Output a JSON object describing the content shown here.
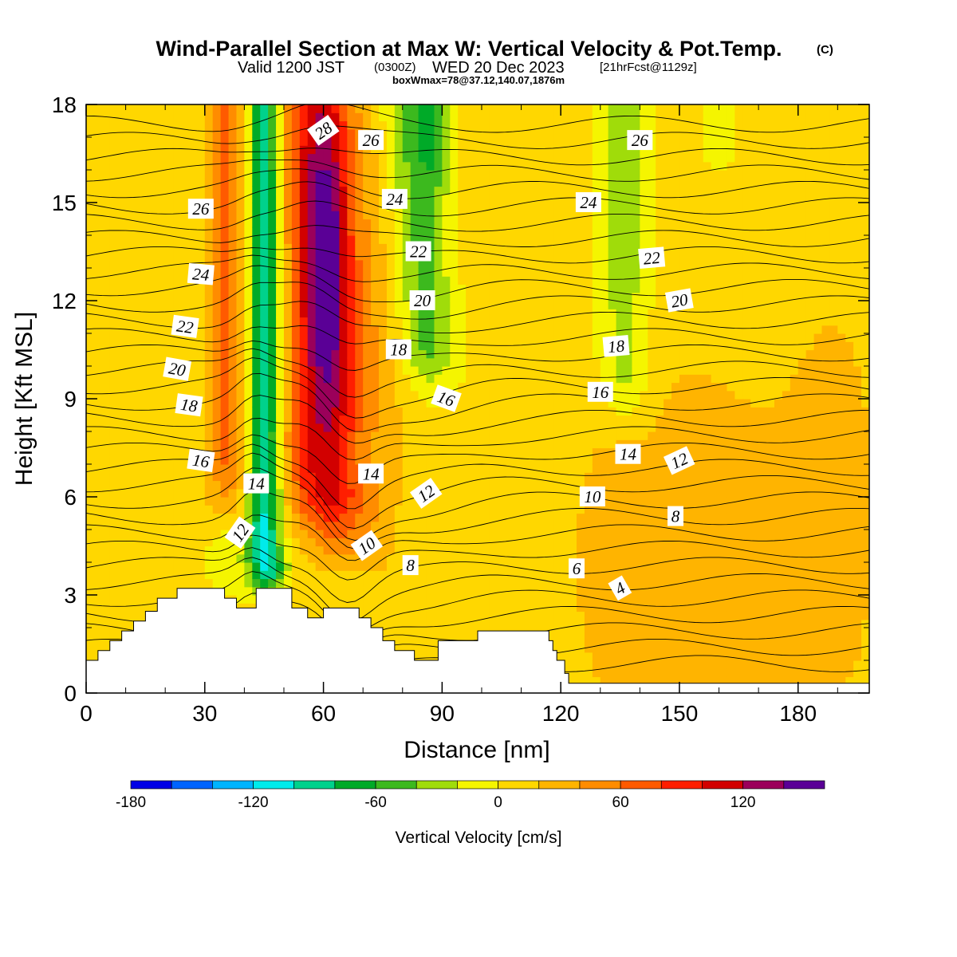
{
  "chart_data": {
    "type": "heatmap",
    "title": "Wind-Parallel Section at Max W: Vertical Velocity & Pot.Temp.",
    "title_mark": "(C)",
    "subtitle": {
      "valid": "Valid 1200 JST",
      "zulu": "(0300Z)",
      "date": "WED 20 Dec 2023",
      "fcst": "[21hrFcst@1129z]"
    },
    "box_info": "boxWmax=78@37.12,140.07,1876m",
    "xlabel": "Distance [nm]",
    "ylabel": "Height [Kft MSL]",
    "xlim": [
      0,
      198
    ],
    "ylim": [
      0,
      18
    ],
    "x_ticks": [
      0,
      30,
      60,
      90,
      120,
      150,
      180
    ],
    "y_ticks": [
      0,
      3,
      6,
      9,
      12,
      15,
      18
    ],
    "colorbar": {
      "label": "Vertical Velocity [cm/s]",
      "levels": [
        -180,
        -160,
        -140,
        -120,
        -100,
        -80,
        -60,
        -40,
        -20,
        0,
        20,
        40,
        60,
        80,
        100,
        120,
        140,
        160
      ],
      "tick_labels": [
        "-180",
        "-120",
        "-60",
        "0",
        "60",
        "120"
      ],
      "colors": [
        "#0000e6",
        "#0064ff",
        "#00b4ff",
        "#00ebeb",
        "#00d28c",
        "#00aa28",
        "#3cb91e",
        "#a0dc0a",
        "#f5f500",
        "#ffd700",
        "#ffb400",
        "#ff8c00",
        "#ff5a00",
        "#ff1e00",
        "#d20000",
        "#9b005a",
        "#5a0096"
      ]
    },
    "vertical_velocity_features": [
      {
        "kind": "updraft-core",
        "x_range": [
          55,
          67
        ],
        "height_range": [
          10,
          16
        ],
        "w_cm_s": 150
      },
      {
        "kind": "updraft-band",
        "x_range": [
          36,
          72
        ],
        "height_range": [
          5,
          18
        ],
        "w_cm_s": 110
      },
      {
        "kind": "downdraft-band",
        "x_range": [
          42,
          50
        ],
        "height_range": [
          3,
          18
        ],
        "w_cm_s": -70
      },
      {
        "kind": "downdraft-column",
        "x_range": [
          74,
          92
        ],
        "height_range": [
          9,
          18
        ],
        "w_cm_s": -45
      },
      {
        "kind": "weak-downdraft",
        "x_range": [
          128,
          143
        ],
        "height_range": [
          7.5,
          18
        ],
        "w_cm_s": -30
      },
      {
        "kind": "weak-updraft",
        "x_range": [
          130,
          198
        ],
        "height_range": [
          0.5,
          12
        ],
        "w_cm_s": 30
      }
    ],
    "terrain_height_kft": [
      [
        0,
        1.0
      ],
      [
        3,
        1.3
      ],
      [
        6,
        1.6
      ],
      [
        9,
        1.9
      ],
      [
        12,
        2.2
      ],
      [
        15,
        2.5
      ],
      [
        18,
        2.9
      ],
      [
        23,
        3.2
      ],
      [
        32,
        3.2
      ],
      [
        35,
        2.9
      ],
      [
        38,
        2.6
      ],
      [
        43,
        3.2
      ],
      [
        49,
        3.2
      ],
      [
        52,
        2.6
      ],
      [
        56,
        2.3
      ],
      [
        60,
        2.6
      ],
      [
        66,
        2.6
      ],
      [
        69,
        2.3
      ],
      [
        72,
        2.0
      ],
      [
        75,
        1.6
      ],
      [
        78,
        1.3
      ],
      [
        82,
        1.3
      ],
      [
        83,
        1.0
      ],
      [
        88,
        1.0
      ],
      [
        89,
        1.6
      ],
      [
        94,
        1.6
      ],
      [
        99,
        1.9
      ],
      [
        114,
        1.9
      ],
      [
        117,
        1.6
      ],
      [
        118,
        1.3
      ],
      [
        119,
        1.0
      ],
      [
        121,
        0.6
      ],
      [
        122,
        0.3
      ],
      [
        198,
        0.3
      ]
    ],
    "theta_contours_label_values": [
      "4",
      "6",
      "8",
      "10",
      "12",
      "14",
      "16",
      "18",
      "20",
      "22",
      "24",
      "26",
      "28"
    ],
    "theta_contour_labels": [
      {
        "text": "28",
        "x": 60,
        "y": 17.2,
        "rotate": -35
      },
      {
        "text": "26",
        "x": 72,
        "y": 16.9,
        "rotate": 0
      },
      {
        "text": "26",
        "x": 29,
        "y": 14.8,
        "rotate": 0
      },
      {
        "text": "26",
        "x": 140,
        "y": 16.9,
        "rotate": 0
      },
      {
        "text": "24",
        "x": 78,
        "y": 15.1,
        "rotate": 0
      },
      {
        "text": "24",
        "x": 127,
        "y": 15.0,
        "rotate": 0
      },
      {
        "text": "24",
        "x": 29,
        "y": 12.8,
        "rotate": 5
      },
      {
        "text": "22",
        "x": 84,
        "y": 13.5,
        "rotate": 0
      },
      {
        "text": "22",
        "x": 143,
        "y": 13.3,
        "rotate": -5
      },
      {
        "text": "22",
        "x": 25,
        "y": 11.2,
        "rotate": 8
      },
      {
        "text": "20",
        "x": 85,
        "y": 12.0,
        "rotate": 0
      },
      {
        "text": "20",
        "x": 150,
        "y": 12.0,
        "rotate": -10
      },
      {
        "text": "20",
        "x": 23,
        "y": 9.9,
        "rotate": 10
      },
      {
        "text": "18",
        "x": 79,
        "y": 10.5,
        "rotate": 0
      },
      {
        "text": "18",
        "x": 134,
        "y": 10.6,
        "rotate": -5
      },
      {
        "text": "18",
        "x": 26,
        "y": 8.8,
        "rotate": 8
      },
      {
        "text": "16",
        "x": 91,
        "y": 9.0,
        "rotate": 20
      },
      {
        "text": "16",
        "x": 130,
        "y": 9.2,
        "rotate": 0
      },
      {
        "text": "16",
        "x": 29,
        "y": 7.1,
        "rotate": 8
      },
      {
        "text": "14",
        "x": 72,
        "y": 6.7,
        "rotate": 0
      },
      {
        "text": "14",
        "x": 137,
        "y": 7.3,
        "rotate": 0
      },
      {
        "text": "14",
        "x": 43,
        "y": 6.4,
        "rotate": 0
      },
      {
        "text": "12",
        "x": 86,
        "y": 6.1,
        "rotate": -35
      },
      {
        "text": "12",
        "x": 150,
        "y": 7.1,
        "rotate": -25
      },
      {
        "text": "12",
        "x": 39,
        "y": 4.9,
        "rotate": -55
      },
      {
        "text": "10",
        "x": 71,
        "y": 4.5,
        "rotate": -35
      },
      {
        "text": "10",
        "x": 128,
        "y": 6.0,
        "rotate": 0
      },
      {
        "text": "8",
        "x": 82,
        "y": 3.9,
        "rotate": 0
      },
      {
        "text": "8",
        "x": 149,
        "y": 5.4,
        "rotate": 0
      },
      {
        "text": "6",
        "x": 124,
        "y": 3.8,
        "rotate": 0
      },
      {
        "text": "4",
        "x": 135,
        "y": 3.2,
        "rotate": -30
      }
    ],
    "grid": false
  }
}
